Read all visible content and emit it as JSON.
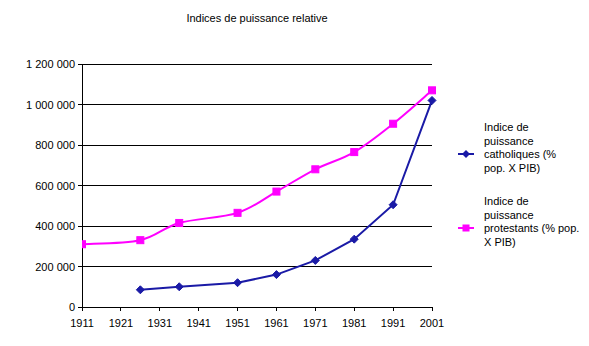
{
  "chart_data": {
    "type": "line",
    "title": "Indices de puissance relative",
    "x": [
      1911,
      1926,
      1936,
      1951,
      1961,
      1971,
      1981,
      1991,
      2001
    ],
    "series": [
      {
        "name": "Indice de puissance catholiques (% pop. X PIB)",
        "color": "#1a1aa6",
        "marker": "diamond",
        "line_style": "solid",
        "values": [
          null,
          85000,
          100000,
          120000,
          160000,
          230000,
          335000,
          505000,
          1020000
        ]
      },
      {
        "name": "Indice de puissance protestants (% pop. X PIB)",
        "color": "#ff00ff",
        "marker": "square",
        "line_style": "smooth",
        "values": [
          310000,
          330000,
          415000,
          465000,
          570000,
          680000,
          765000,
          905000,
          1070000
        ]
      }
    ],
    "xlim": [
      1911,
      2001
    ],
    "xticks": [
      1911,
      1921,
      1931,
      1941,
      1951,
      1961,
      1971,
      1981,
      1991,
      2001
    ],
    "ylim": [
      0,
      1200000
    ],
    "yticks": [
      0,
      {
        "value": 200000,
        "label": "200 000"
      },
      {
        "value": 400000,
        "label": "400 000"
      },
      {
        "value": 600000,
        "label": "600 000"
      },
      {
        "value": 800000,
        "label": "800 000"
      },
      {
        "value": 1000000,
        "label": "1 000 000"
      },
      {
        "value": 1200000,
        "label": "1 200 000"
      }
    ],
    "grid": true,
    "legend": "right"
  }
}
